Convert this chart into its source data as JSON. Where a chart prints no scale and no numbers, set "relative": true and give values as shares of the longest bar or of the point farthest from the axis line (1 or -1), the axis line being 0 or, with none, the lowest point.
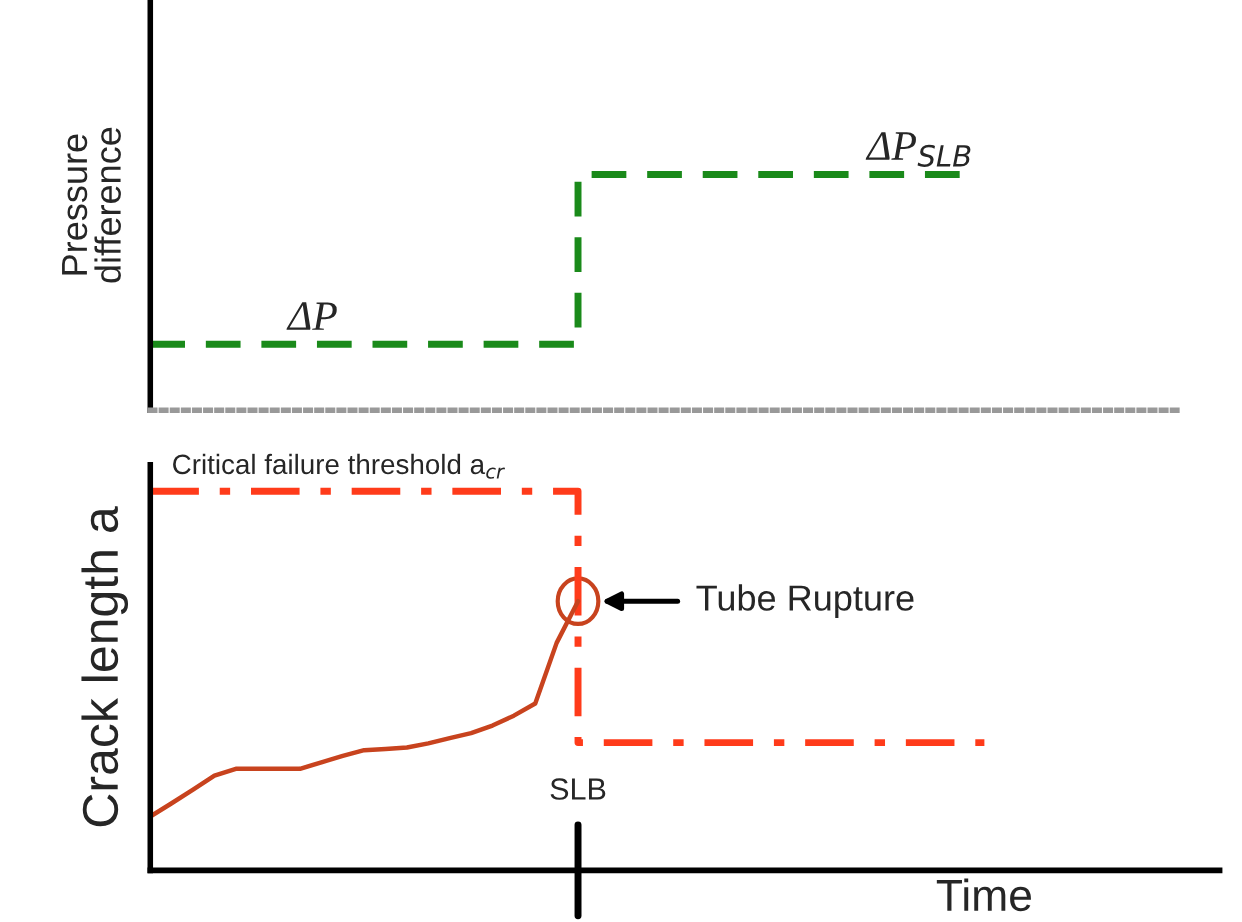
{
  "chart_data": [
    {
      "type": "step",
      "relative": true,
      "ylabel": "Pressure\ndifference",
      "line_style": "dashed",
      "marker": "none",
      "categories": [
        null,
        null,
        null,
        null,
        null,
        null,
        null,
        null,
        null,
        null,
        null,
        null,
        null,
        null,
        null,
        null,
        null,
        null,
        null,
        null,
        null,
        null,
        null,
        null,
        null,
        null,
        null,
        null,
        null,
        null,
        null,
        null,
        null,
        null,
        null,
        null,
        null,
        null,
        null,
        null,
        null,
        null,
        null,
        null,
        null,
        null,
        null,
        null,
        null,
        null,
        null
      ],
      "series": [
        {
          "color": "#1a8a1a",
          "values": [
            0.28,
            0.28,
            0.28,
            0.28,
            0.28,
            0.28,
            0.28,
            0.28,
            0.28,
            0.28,
            0.28,
            0.28,
            0.28,
            0.28,
            0.28,
            0.28,
            0.28,
            0.28,
            0.28,
            0.28,
            1,
            1,
            1,
            1,
            1,
            1,
            1,
            1,
            1,
            1,
            1,
            1,
            1,
            1,
            1,
            1,
            1,
            1,
            1,
            null,
            null,
            null,
            null,
            null,
            null,
            null,
            null,
            null,
            null,
            null,
            null
          ]
        }
      ],
      "annotations": [
        "ΔP",
        "ΔP$_{SLB}$"
      ]
    },
    {
      "type": "line",
      "relative": true,
      "ylabel": "Crack length a",
      "xlabel": "Time",
      "marker": "none",
      "categories": [
        null,
        null,
        null,
        null,
        null,
        null,
        null,
        null,
        null,
        null,
        null,
        null,
        null,
        null,
        null,
        null,
        null,
        null,
        null,
        null,
        null,
        null,
        null,
        null,
        null,
        null,
        null,
        null,
        null,
        null,
        null,
        null,
        null,
        null,
        null,
        null,
        null,
        null,
        null,
        null,
        null,
        null,
        null,
        null,
        null,
        null,
        null,
        null,
        null,
        null,
        null
      ],
      "series": [
        {
          "name": "Critical failure threshold a$_{cr}$",
          "type": "step",
          "line_style": "dashdot",
          "color": "#ff3b1a",
          "values": [
            1,
            1,
            1,
            1,
            1,
            1,
            1,
            1,
            1,
            1,
            1,
            1,
            1,
            1,
            1,
            1,
            1,
            1,
            1,
            1,
            0.337,
            0.337,
            0.337,
            0.337,
            0.337,
            0.337,
            0.337,
            0.337,
            0.337,
            0.337,
            0.337,
            0.337,
            0.337,
            0.337,
            0.337,
            0.337,
            0.337,
            0.337,
            0.337,
            0.337,
            null,
            null,
            null,
            null,
            null,
            null,
            null,
            null,
            null,
            null,
            null
          ]
        },
        {
          "type": "line",
          "line_style": "solid",
          "color": "#c8431e",
          "values": [
            0.142,
            0.177,
            0.213,
            0.25,
            0.268,
            0.268,
            0.268,
            0.268,
            0.285,
            0.302,
            0.317,
            0.32,
            0.324,
            0.335,
            0.349,
            0.362,
            0.382,
            0.408,
            0.44,
            0.6,
            0.71,
            null,
            null,
            null,
            null,
            null,
            null,
            null,
            null,
            null,
            null,
            null,
            null,
            null,
            null,
            null,
            null,
            null,
            null,
            null,
            null,
            null,
            null,
            null,
            null,
            null,
            null,
            null,
            null,
            null,
            null
          ]
        }
      ],
      "annotations": [
        "SLB",
        "Tube Rupture"
      ]
    }
  ]
}
